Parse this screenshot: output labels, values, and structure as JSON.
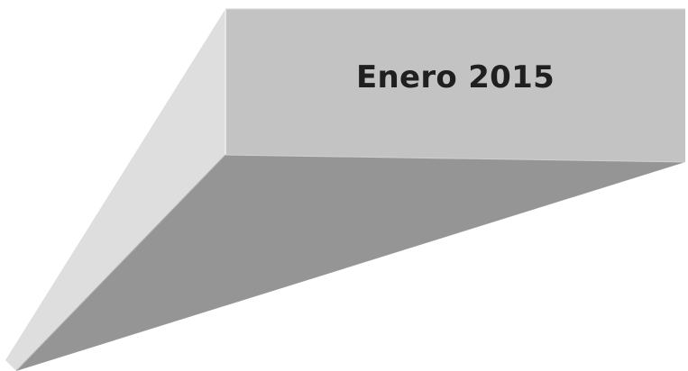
{
  "banner": {
    "title": "Enero 2015"
  },
  "colors": {
    "front_face": "#c3c3c3",
    "left_face": "#dedede",
    "bottom_face": "#959595",
    "edge_highlight": "#efefef",
    "text": "#1f1f1f"
  }
}
